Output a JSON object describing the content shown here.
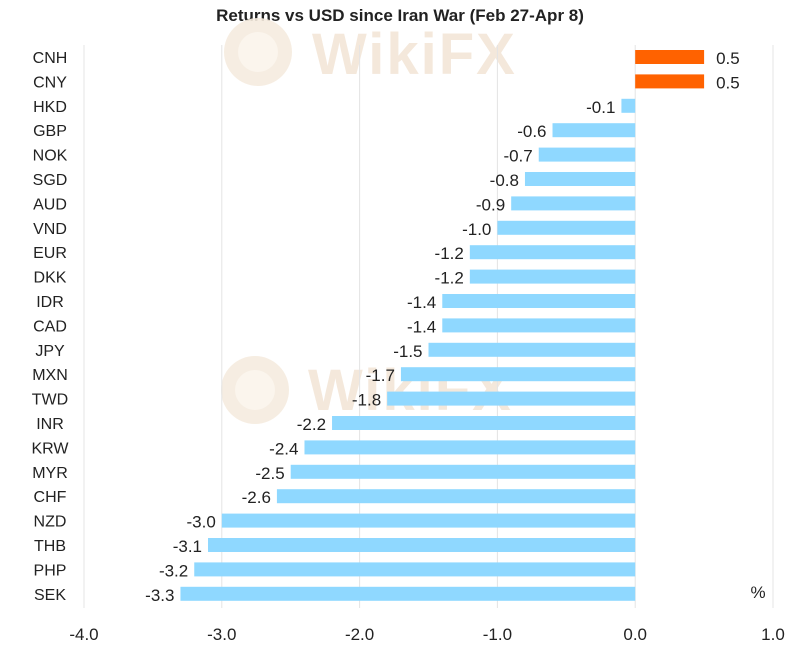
{
  "chart_data": {
    "type": "bar",
    "orientation": "horizontal",
    "title": "Returns vs USD since Iran War (Feb 27-Apr 8)",
    "unit_label": "%",
    "categories": [
      "CNH",
      "CNY",
      "HKD",
      "GBP",
      "NOK",
      "SGD",
      "AUD",
      "VND",
      "EUR",
      "DKK",
      "IDR",
      "CAD",
      "JPY",
      "MXN",
      "TWD",
      "INR",
      "KRW",
      "MYR",
      "CHF",
      "NZD",
      "THB",
      "PHP",
      "SEK"
    ],
    "values": [
      0.5,
      0.5,
      -0.1,
      -0.6,
      -0.7,
      -0.8,
      -0.9,
      -1.0,
      -1.2,
      -1.2,
      -1.4,
      -1.4,
      -1.5,
      -1.7,
      -1.8,
      -2.2,
      -2.4,
      -2.5,
      -2.6,
      -3.0,
      -3.1,
      -3.2,
      -3.3
    ],
    "value_labels": [
      "0.5",
      "0.5",
      "-0.1",
      "-0.6",
      "-0.7",
      "-0.8",
      "-0.9",
      "-1.0",
      "-1.2",
      "-1.2",
      "-1.4",
      "-1.4",
      "-1.5",
      "-1.7",
      "-1.8",
      "-2.2",
      "-2.4",
      "-2.5",
      "-2.6",
      "-3.0",
      "-3.1",
      "-3.2",
      "-3.3"
    ],
    "xlim": [
      -4.0,
      1.0
    ],
    "xticks": [
      -4.0,
      -3.0,
      -2.0,
      -1.0,
      0.0,
      1.0
    ],
    "xtick_labels": [
      "-4.0",
      "-3.0",
      "-2.0",
      "-1.0",
      "0.0",
      "1.0"
    ],
    "grid": true,
    "colors": {
      "positive": "#ff6200",
      "negative": "#8fd8ff",
      "grid": "#e4e4e4",
      "text": "#222222"
    }
  },
  "watermark": {
    "text": "WikiFX"
  }
}
